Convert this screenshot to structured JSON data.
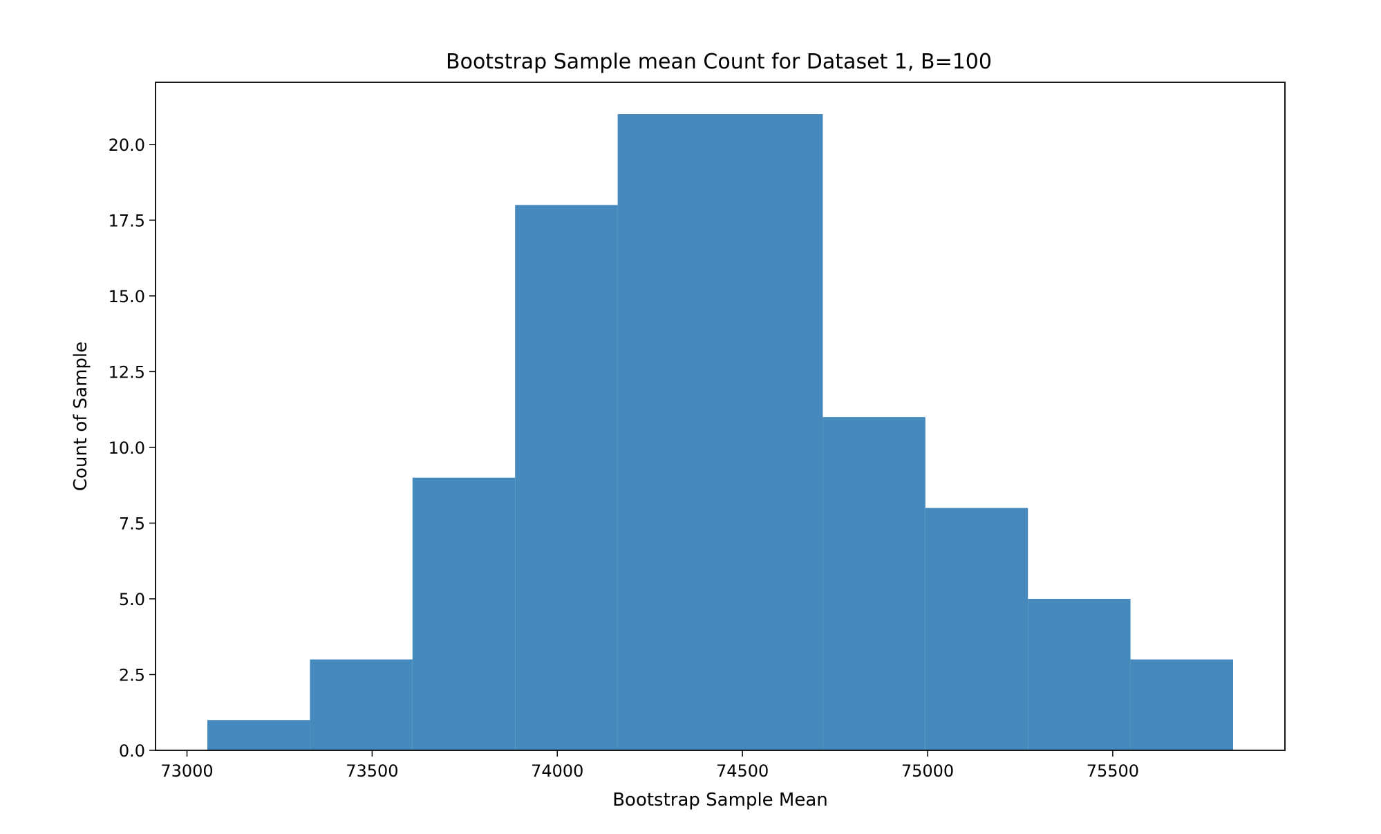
{
  "chart_data": {
    "type": "bar",
    "title": "Bootstrap Sample mean Count for Dataset 1, B=100",
    "xlabel": "Bootstrap Sample Mean",
    "ylabel": "Count of Sample",
    "bins": [
      {
        "x0": 73055,
        "x1": 73332,
        "count": 1
      },
      {
        "x0": 73332,
        "x1": 73609,
        "count": 3
      },
      {
        "x0": 73609,
        "x1": 73886,
        "count": 9
      },
      {
        "x0": 73886,
        "x1": 74163,
        "count": 18
      },
      {
        "x0": 74163,
        "x1": 74440,
        "count": 21
      },
      {
        "x0": 74440,
        "x1": 74717,
        "count": 21
      },
      {
        "x0": 74717,
        "x1": 74994,
        "count": 11
      },
      {
        "x0": 74994,
        "x1": 75271,
        "count": 8
      },
      {
        "x0": 75271,
        "x1": 75548,
        "count": 5
      },
      {
        "x0": 75548,
        "x1": 75825,
        "count": 3
      }
    ],
    "xlim": [
      72915,
      75965
    ],
    "ylim": [
      0,
      22.05
    ],
    "xticks": [
      73000,
      73500,
      74000,
      74500,
      75000,
      75500
    ],
    "xtick_labels": [
      "73000",
      "73500",
      "74000",
      "74500",
      "75000",
      "75500"
    ],
    "yticks": [
      0,
      2.5,
      5,
      7.5,
      10,
      12.5,
      15,
      17.5,
      20
    ],
    "ytick_labels": [
      "0.0",
      "2.5",
      "5.0",
      "7.5",
      "10.0",
      "12.5",
      "15.0",
      "17.5",
      "20.0"
    ],
    "bar_color": "#4689bd",
    "grid": false,
    "legend": false
  }
}
